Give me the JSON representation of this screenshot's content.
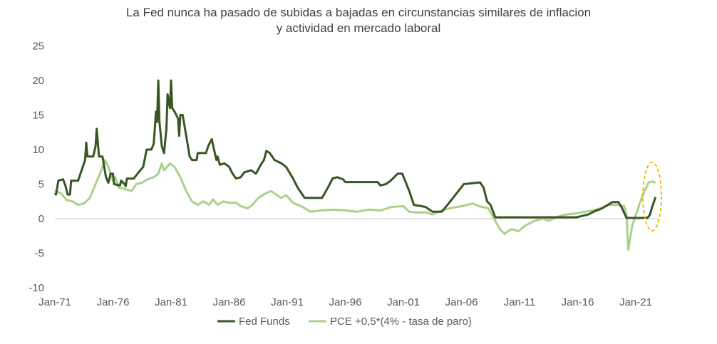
{
  "chart_data": {
    "type": "line",
    "title": [
      "La Fed nunca ha pasado de subidas a bajadas en circunstancias similares de inflacion",
      "y actividad en mercado laboral"
    ],
    "xlabel": "",
    "ylabel": "",
    "ylim": [
      -10,
      25
    ],
    "yticks": [
      "25",
      "20",
      "15",
      "10",
      "5",
      "0",
      "-5",
      "-10"
    ],
    "ytick_values": [
      25,
      20,
      15,
      10,
      5,
      0,
      -5,
      -10
    ],
    "xticks": [
      "Jan-71",
      "Jan-76",
      "Jan-81",
      "Jan-86",
      "Jan-91",
      "Jan-96",
      "Jan-01",
      "Jan-06",
      "Jan-11",
      "Jan-16",
      "Jan-21"
    ],
    "xtick_values": [
      1971,
      1976,
      1981,
      1986,
      1991,
      1996,
      2001,
      2006,
      2011,
      2016,
      2021
    ],
    "xlim": [
      1971,
      2022.7
    ],
    "grid": false,
    "legend_position": "bottom",
    "annotation": "dashed ellipse highlighting 2021-2022",
    "colors": {
      "fed": "#375623",
      "pce": "#a9d18e",
      "ellipse": "#f0b400",
      "zero": "#d9d9d9"
    },
    "series": [
      {
        "name": "Fed Funds",
        "points": [
          [
            1971.0,
            3.7
          ],
          [
            1971.1,
            3.5
          ],
          [
            1971.3,
            5.5
          ],
          [
            1971.7,
            5.7
          ],
          [
            1971.9,
            4.8
          ],
          [
            1972.1,
            3.5
          ],
          [
            1972.3,
            3.5
          ],
          [
            1972.4,
            5.5
          ],
          [
            1973.0,
            5.5
          ],
          [
            1973.3,
            7.0
          ],
          [
            1973.6,
            8.5
          ],
          [
            1973.7,
            11.0
          ],
          [
            1973.8,
            9.0
          ],
          [
            1974.3,
            9.0
          ],
          [
            1974.5,
            10.5
          ],
          [
            1974.6,
            13.0
          ],
          [
            1974.8,
            9.0
          ],
          [
            1975.1,
            9.0
          ],
          [
            1975.4,
            6.0
          ],
          [
            1975.6,
            5.2
          ],
          [
            1975.8,
            6.5
          ],
          [
            1976.0,
            6.5
          ],
          [
            1976.1,
            5.0
          ],
          [
            1976.6,
            4.8
          ],
          [
            1976.7,
            5.5
          ],
          [
            1977.0,
            5.0
          ],
          [
            1977.1,
            4.7
          ],
          [
            1977.2,
            5.8
          ],
          [
            1977.8,
            5.8
          ],
          [
            1978.2,
            6.7
          ],
          [
            1978.6,
            7.5
          ],
          [
            1978.9,
            10.0
          ],
          [
            1979.3,
            10.0
          ],
          [
            1979.5,
            10.8
          ],
          [
            1979.6,
            13.0
          ],
          [
            1979.7,
            15.5
          ],
          [
            1979.8,
            14.0
          ],
          [
            1979.9,
            20.0
          ],
          [
            1980.0,
            14.0
          ],
          [
            1980.2,
            10.5
          ],
          [
            1980.4,
            9.5
          ],
          [
            1980.6,
            13.0
          ],
          [
            1980.7,
            18.0
          ],
          [
            1980.9,
            16.0
          ],
          [
            1981.0,
            20.0
          ],
          [
            1981.1,
            16.0
          ],
          [
            1981.3,
            15.5
          ],
          [
            1981.6,
            14.5
          ],
          [
            1981.7,
            12.0
          ],
          [
            1981.8,
            15.0
          ],
          [
            1982.0,
            15.0
          ],
          [
            1982.2,
            13.0
          ],
          [
            1982.5,
            10.0
          ],
          [
            1982.6,
            9.0
          ],
          [
            1982.8,
            8.5
          ],
          [
            1983.2,
            8.5
          ],
          [
            1983.3,
            9.5
          ],
          [
            1984.0,
            9.5
          ],
          [
            1984.2,
            10.5
          ],
          [
            1984.5,
            11.5
          ],
          [
            1984.7,
            10.0
          ],
          [
            1984.9,
            8.5
          ],
          [
            1985.0,
            9.0
          ],
          [
            1985.2,
            7.8
          ],
          [
            1985.6,
            8.0
          ],
          [
            1986.0,
            7.5
          ],
          [
            1986.3,
            6.5
          ],
          [
            1986.6,
            5.8
          ],
          [
            1987.0,
            6.0
          ],
          [
            1987.3,
            6.7
          ],
          [
            1987.9,
            7.0
          ],
          [
            1988.3,
            6.5
          ],
          [
            1988.8,
            8.0
          ],
          [
            1989.0,
            8.5
          ],
          [
            1989.2,
            9.8
          ],
          [
            1989.5,
            9.5
          ],
          [
            1989.9,
            8.5
          ],
          [
            1990.5,
            8.0
          ],
          [
            1990.9,
            7.5
          ],
          [
            1991.5,
            5.8
          ],
          [
            1991.9,
            4.5
          ],
          [
            1992.5,
            3.0
          ],
          [
            1994.0,
            3.0
          ],
          [
            1994.5,
            4.5
          ],
          [
            1994.9,
            5.8
          ],
          [
            1995.3,
            6.0
          ],
          [
            1995.8,
            5.7
          ],
          [
            1996.0,
            5.3
          ],
          [
            1998.8,
            5.3
          ],
          [
            1999.0,
            4.8
          ],
          [
            1999.5,
            5.0
          ],
          [
            1999.9,
            5.5
          ],
          [
            2000.5,
            6.5
          ],
          [
            2000.9,
            6.5
          ],
          [
            2001.5,
            4.0
          ],
          [
            2001.9,
            2.0
          ],
          [
            2002.9,
            1.7
          ],
          [
            2003.5,
            1.0
          ],
          [
            2004.3,
            1.0
          ],
          [
            2004.8,
            2.0
          ],
          [
            2005.5,
            3.5
          ],
          [
            2006.2,
            5.0
          ],
          [
            2007.6,
            5.25
          ],
          [
            2007.9,
            4.5
          ],
          [
            2008.2,
            2.5
          ],
          [
            2008.5,
            2.0
          ],
          [
            2008.9,
            0.2
          ],
          [
            2015.9,
            0.2
          ],
          [
            2016.9,
            0.6
          ],
          [
            2017.5,
            1.1
          ],
          [
            2018.0,
            1.4
          ],
          [
            2018.5,
            1.9
          ],
          [
            2019.0,
            2.4
          ],
          [
            2019.5,
            2.4
          ],
          [
            2019.8,
            1.6
          ],
          [
            2020.2,
            0.1
          ],
          [
            2022.0,
            0.1
          ],
          [
            2022.2,
            0.5
          ],
          [
            2022.4,
            1.6
          ],
          [
            2022.7,
            3.1
          ]
        ]
      },
      {
        "name": "PCE +0,5*(4% - tasa de paro)",
        "points": [
          [
            1971.0,
            4.0
          ],
          [
            1971.5,
            3.7
          ],
          [
            1972.0,
            2.7
          ],
          [
            1972.5,
            2.5
          ],
          [
            1973.0,
            2.0
          ],
          [
            1973.5,
            2.2
          ],
          [
            1974.0,
            3.0
          ],
          [
            1974.5,
            5.0
          ],
          [
            1975.0,
            7.0
          ],
          [
            1975.3,
            8.5
          ],
          [
            1975.6,
            7.5
          ],
          [
            1976.0,
            5.5
          ],
          [
            1976.2,
            6.0
          ],
          [
            1976.5,
            4.5
          ],
          [
            1977.0,
            4.3
          ],
          [
            1977.6,
            4.0
          ],
          [
            1978.0,
            5.0
          ],
          [
            1978.5,
            5.2
          ],
          [
            1979.0,
            5.7
          ],
          [
            1979.5,
            6.0
          ],
          [
            1979.9,
            6.5
          ],
          [
            1980.2,
            8.0
          ],
          [
            1980.4,
            7.0
          ],
          [
            1980.9,
            8.0
          ],
          [
            1981.3,
            7.5
          ],
          [
            1981.8,
            6.0
          ],
          [
            1982.3,
            4.0
          ],
          [
            1982.8,
            2.5
          ],
          [
            1983.3,
            2.0
          ],
          [
            1983.8,
            2.5
          ],
          [
            1984.3,
            2.0
          ],
          [
            1984.6,
            2.8
          ],
          [
            1985.0,
            2.0
          ],
          [
            1985.5,
            2.5
          ],
          [
            1986.0,
            2.3
          ],
          [
            1986.6,
            2.3
          ],
          [
            1987.0,
            1.8
          ],
          [
            1987.6,
            1.5
          ],
          [
            1988.0,
            2.0
          ],
          [
            1988.5,
            3.0
          ],
          [
            1989.2,
            3.7
          ],
          [
            1989.6,
            4.0
          ],
          [
            1990.2,
            3.3
          ],
          [
            1990.5,
            3.0
          ],
          [
            1990.9,
            3.4
          ],
          [
            1991.5,
            2.3
          ],
          [
            1992.3,
            1.7
          ],
          [
            1993.0,
            1.0
          ],
          [
            1994.0,
            1.2
          ],
          [
            1995.0,
            1.3
          ],
          [
            1996.0,
            1.2
          ],
          [
            1997.0,
            1.0
          ],
          [
            1998.0,
            1.3
          ],
          [
            1999.0,
            1.2
          ],
          [
            2000.0,
            1.7
          ],
          [
            2001.0,
            1.8
          ],
          [
            2001.5,
            1.0
          ],
          [
            2002.0,
            0.9
          ],
          [
            2003.0,
            0.9
          ],
          [
            2003.5,
            0.6
          ],
          [
            2004.3,
            1.2
          ],
          [
            2005.0,
            1.5
          ],
          [
            2006.0,
            1.8
          ],
          [
            2007.0,
            2.2
          ],
          [
            2007.5,
            1.8
          ],
          [
            2008.3,
            1.5
          ],
          [
            2008.8,
            0.0
          ],
          [
            2009.3,
            -1.5
          ],
          [
            2009.7,
            -2.2
          ],
          [
            2010.3,
            -1.5
          ],
          [
            2010.9,
            -1.8
          ],
          [
            2011.5,
            -1.0
          ],
          [
            2012.3,
            -0.3
          ],
          [
            2013.0,
            0.0
          ],
          [
            2013.5,
            -0.3
          ],
          [
            2014.3,
            0.3
          ],
          [
            2015.0,
            0.6
          ],
          [
            2016.0,
            0.8
          ],
          [
            2017.0,
            1.1
          ],
          [
            2018.0,
            1.5
          ],
          [
            2018.7,
            2.0
          ],
          [
            2019.5,
            2.0
          ],
          [
            2020.0,
            1.8
          ],
          [
            2020.2,
            0.6
          ],
          [
            2020.35,
            -4.5
          ],
          [
            2020.7,
            -1.0
          ],
          [
            2021.3,
            2.0
          ],
          [
            2021.7,
            3.8
          ],
          [
            2022.1,
            5.2
          ],
          [
            2022.4,
            5.4
          ],
          [
            2022.7,
            5.2
          ]
        ]
      }
    ]
  }
}
